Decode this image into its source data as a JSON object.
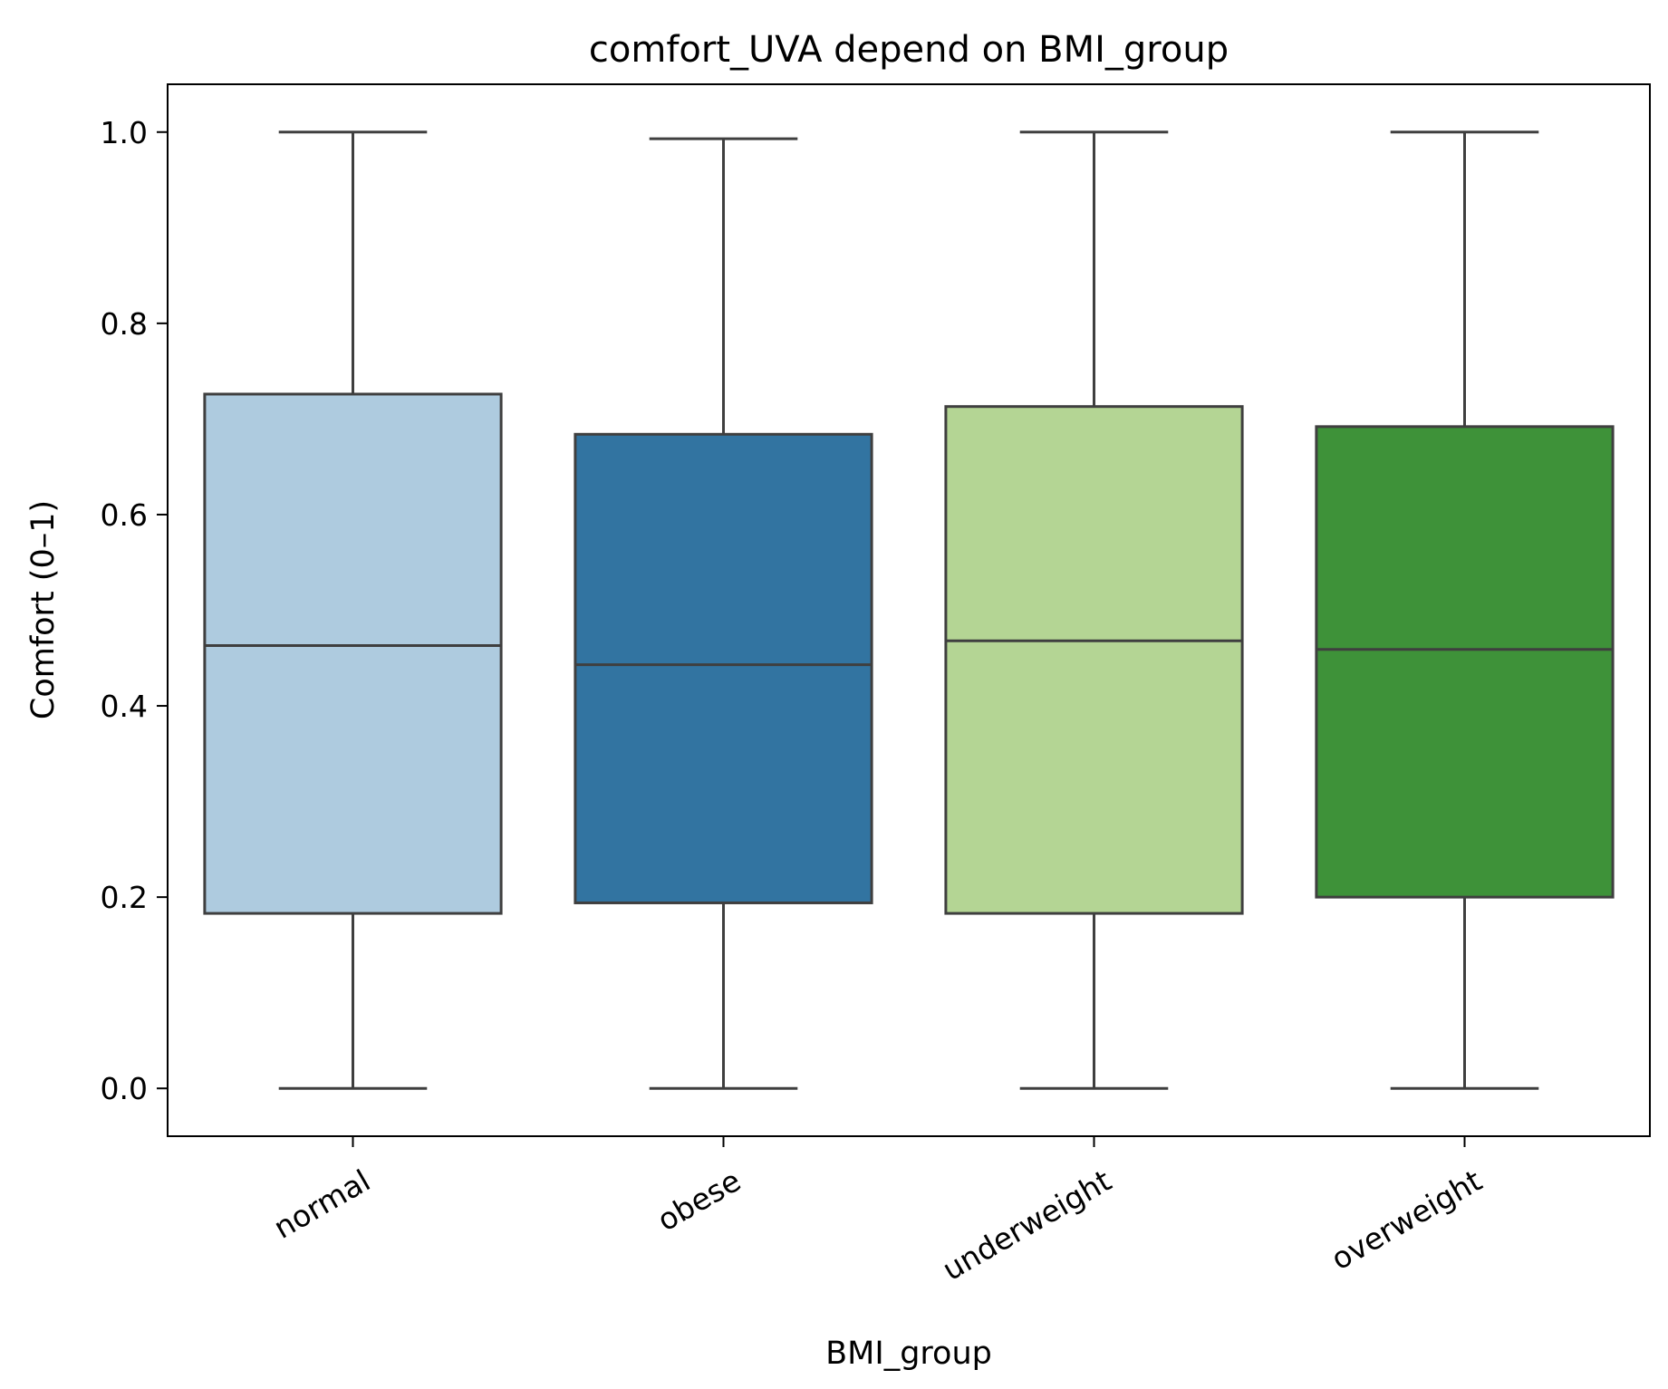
{
  "chart_data": {
    "type": "box",
    "title": "comfort_UVA depend on BMI_group",
    "xlabel": "BMI_group",
    "ylabel": "Comfort (0–1)",
    "ylim": [
      -0.05,
      1.05
    ],
    "yticks": [
      0.0,
      0.2,
      0.4,
      0.6,
      0.8,
      1.0
    ],
    "ytick_labels": [
      "0.0",
      "0.2",
      "0.4",
      "0.6",
      "0.8",
      "1.0"
    ],
    "grid": false,
    "categories": [
      "normal",
      "obese",
      "underweight",
      "overweight"
    ],
    "boxes": [
      {
        "category": "normal",
        "whisker_low": 0.0,
        "q1": 0.183,
        "median": 0.463,
        "q3": 0.726,
        "whisker_high": 1.0,
        "color": "#aecbdf"
      },
      {
        "category": "obese",
        "whisker_low": 0.0,
        "q1": 0.194,
        "median": 0.443,
        "q3": 0.684,
        "whisker_high": 0.993,
        "color": "#3274a1"
      },
      {
        "category": "underweight",
        "whisker_low": 0.0,
        "q1": 0.183,
        "median": 0.468,
        "q3": 0.713,
        "whisker_high": 1.0,
        "color": "#b4d594"
      },
      {
        "category": "overweight",
        "whisker_low": 0.0,
        "q1": 0.2,
        "median": 0.459,
        "q3": 0.692,
        "whisker_high": 1.0,
        "color": "#3e9239"
      }
    ],
    "line_color": "#3f3f3f"
  }
}
